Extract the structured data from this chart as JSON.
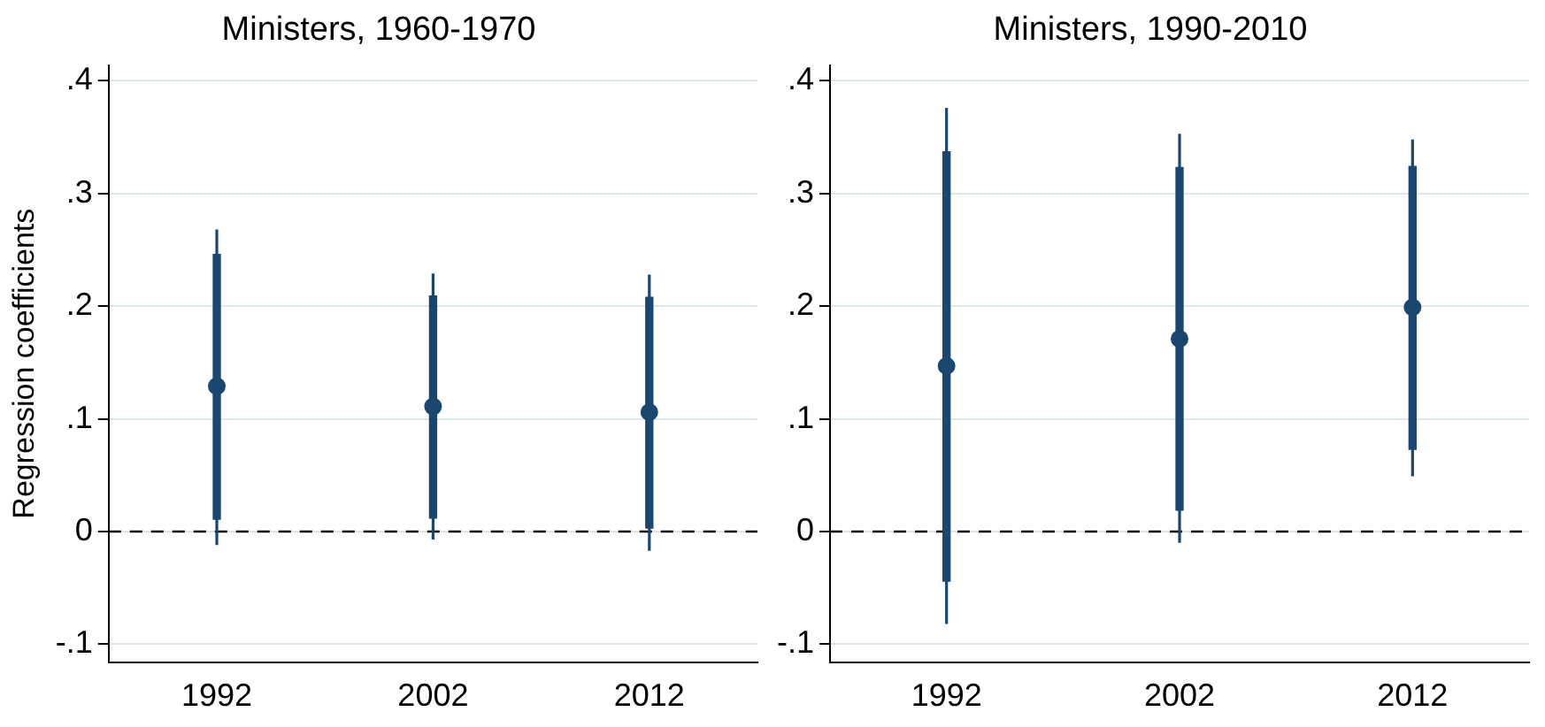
{
  "chart_data": [
    {
      "type": "scatter",
      "title": "Ministers, 1960-1970",
      "ylabel": "Regression coefficients",
      "categories": [
        "1992",
        "2002",
        "2012"
      ],
      "series": [
        {
          "type": "bar",
          "color": "#1a476f",
          "base": [
            0.011,
            0.012,
            0.003
          ],
          "values": [
            0.235,
            0.197,
            0.205
          ]
        },
        {
          "color": "#1a476f",
          "values": [
            0.129,
            0.111,
            0.106
          ],
          "errors": [
            [
              -0.012,
              0.268
            ],
            [
              -0.007,
              0.229
            ],
            [
              -0.017,
              0.228
            ]
          ]
        }
      ],
      "ylim": [
        -0.116,
        0.414
      ],
      "yticks": [
        {
          "value": -0.1,
          "label": "-.1"
        },
        0,
        {
          "value": 0.1,
          "label": ".1"
        },
        {
          "value": 0.2,
          "label": ".2"
        },
        {
          "value": 0.3,
          "label": ".3"
        },
        {
          "value": 0.4,
          "label": ".4"
        }
      ],
      "grid": "y",
      "legend": false,
      "ref_lines": [
        {
          "axis": "y",
          "value": 0,
          "color": "#000000",
          "line_style": "dashed"
        }
      ]
    },
    {
      "type": "scatter",
      "title": "Ministers, 1990-2010",
      "categories": [
        "1992",
        "2002",
        "2012"
      ],
      "series": [
        {
          "type": "bar",
          "color": "#1a476f",
          "base": [
            -0.044,
            0.019,
            0.073
          ],
          "values": [
            0.381,
            0.304,
            0.251
          ]
        },
        {
          "color": "#1a476f",
          "values": [
            0.147,
            0.171,
            0.199
          ],
          "errors": [
            [
              -0.082,
              0.376
            ],
            [
              -0.01,
              0.353
            ],
            [
              0.049,
              0.348
            ]
          ]
        }
      ],
      "ylim": [
        -0.116,
        0.414
      ],
      "yticks": [
        {
          "value": -0.1,
          "label": "-.1"
        },
        0,
        {
          "value": 0.1,
          "label": ".1"
        },
        {
          "value": 0.2,
          "label": ".2"
        },
        {
          "value": 0.3,
          "label": ".3"
        },
        {
          "value": 0.4,
          "label": ".4"
        }
      ],
      "grid": "y",
      "legend": false,
      "ref_lines": [
        {
          "axis": "y",
          "value": 0,
          "color": "#000000",
          "line_style": "dashed"
        }
      ]
    }
  ]
}
